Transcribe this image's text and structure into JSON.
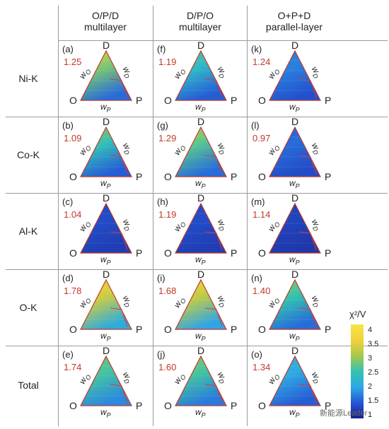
{
  "columns": [
    {
      "line1": "O/P/D",
      "line2": "multilayer"
    },
    {
      "line1": "D/P/O",
      "line2": "multilayer"
    },
    {
      "line1": "O+P+D",
      "line2": "parallel-layer"
    }
  ],
  "rows": [
    {
      "label": "Ni-K"
    },
    {
      "label": "Co-K"
    },
    {
      "label": "Al-K"
    },
    {
      "label": "O-K"
    },
    {
      "label": "Total"
    }
  ],
  "panels": [
    [
      {
        "id": "(a)",
        "chi": "1.25",
        "hot": 0.85,
        "base": 0.35
      },
      {
        "id": "(f)",
        "chi": "1.19",
        "hot": 0.55,
        "base": 0.3
      },
      {
        "id": "(k)",
        "chi": "1.24",
        "hot": 0.25,
        "base": 0.25
      }
    ],
    [
      {
        "id": "(b)",
        "chi": "1.09",
        "hot": 0.65,
        "base": 0.3
      },
      {
        "id": "(g)",
        "chi": "1.29",
        "hot": 0.75,
        "base": 0.35
      },
      {
        "id": "(l)",
        "chi": "0.97",
        "hot": 0.2,
        "base": 0.22
      }
    ],
    [
      {
        "id": "(c)",
        "chi": "1.04",
        "hot": 0.12,
        "base": 0.15
      },
      {
        "id": "(h)",
        "chi": "1.19",
        "hot": 0.12,
        "base": 0.15
      },
      {
        "id": "(m)",
        "chi": "1.14",
        "hot": 0.1,
        "base": 0.12
      }
    ],
    [
      {
        "id": "(d)",
        "chi": "1.78",
        "hot": 0.9,
        "base": 0.6
      },
      {
        "id": "(i)",
        "chi": "1.68",
        "hot": 0.9,
        "base": 0.55
      },
      {
        "id": "(n)",
        "chi": "1.40",
        "hot": 0.65,
        "base": 0.35
      }
    ],
    [
      {
        "id": "(e)",
        "chi": "1.74",
        "hot": 0.6,
        "base": 0.45
      },
      {
        "id": "(j)",
        "chi": "1.60",
        "hot": 0.65,
        "base": 0.4
      },
      {
        "id": "(o)",
        "chi": "1.34",
        "hot": 0.4,
        "base": 0.3
      }
    ]
  ],
  "vertex_labels": {
    "top": "D",
    "left": "O",
    "right": "P"
  },
  "axis_labels": {
    "left": "w",
    "left_sub": "O",
    "right": "w",
    "right_sub": "D",
    "bottom": "w",
    "bottom_sub": "P"
  },
  "colorbar": {
    "title": "χ²/V",
    "ticks": [
      "4",
      "3.5",
      "3",
      "2.5",
      "2",
      "1.5",
      "1"
    ],
    "range": [
      1,
      4.3
    ],
    "colors": [
      "#1b1f8a",
      "#2457d6",
      "#2ea8e6",
      "#34c3b0",
      "#a8c84a",
      "#f2d23a",
      "#f7e34a"
    ]
  },
  "watermark": "新能源Leader"
}
